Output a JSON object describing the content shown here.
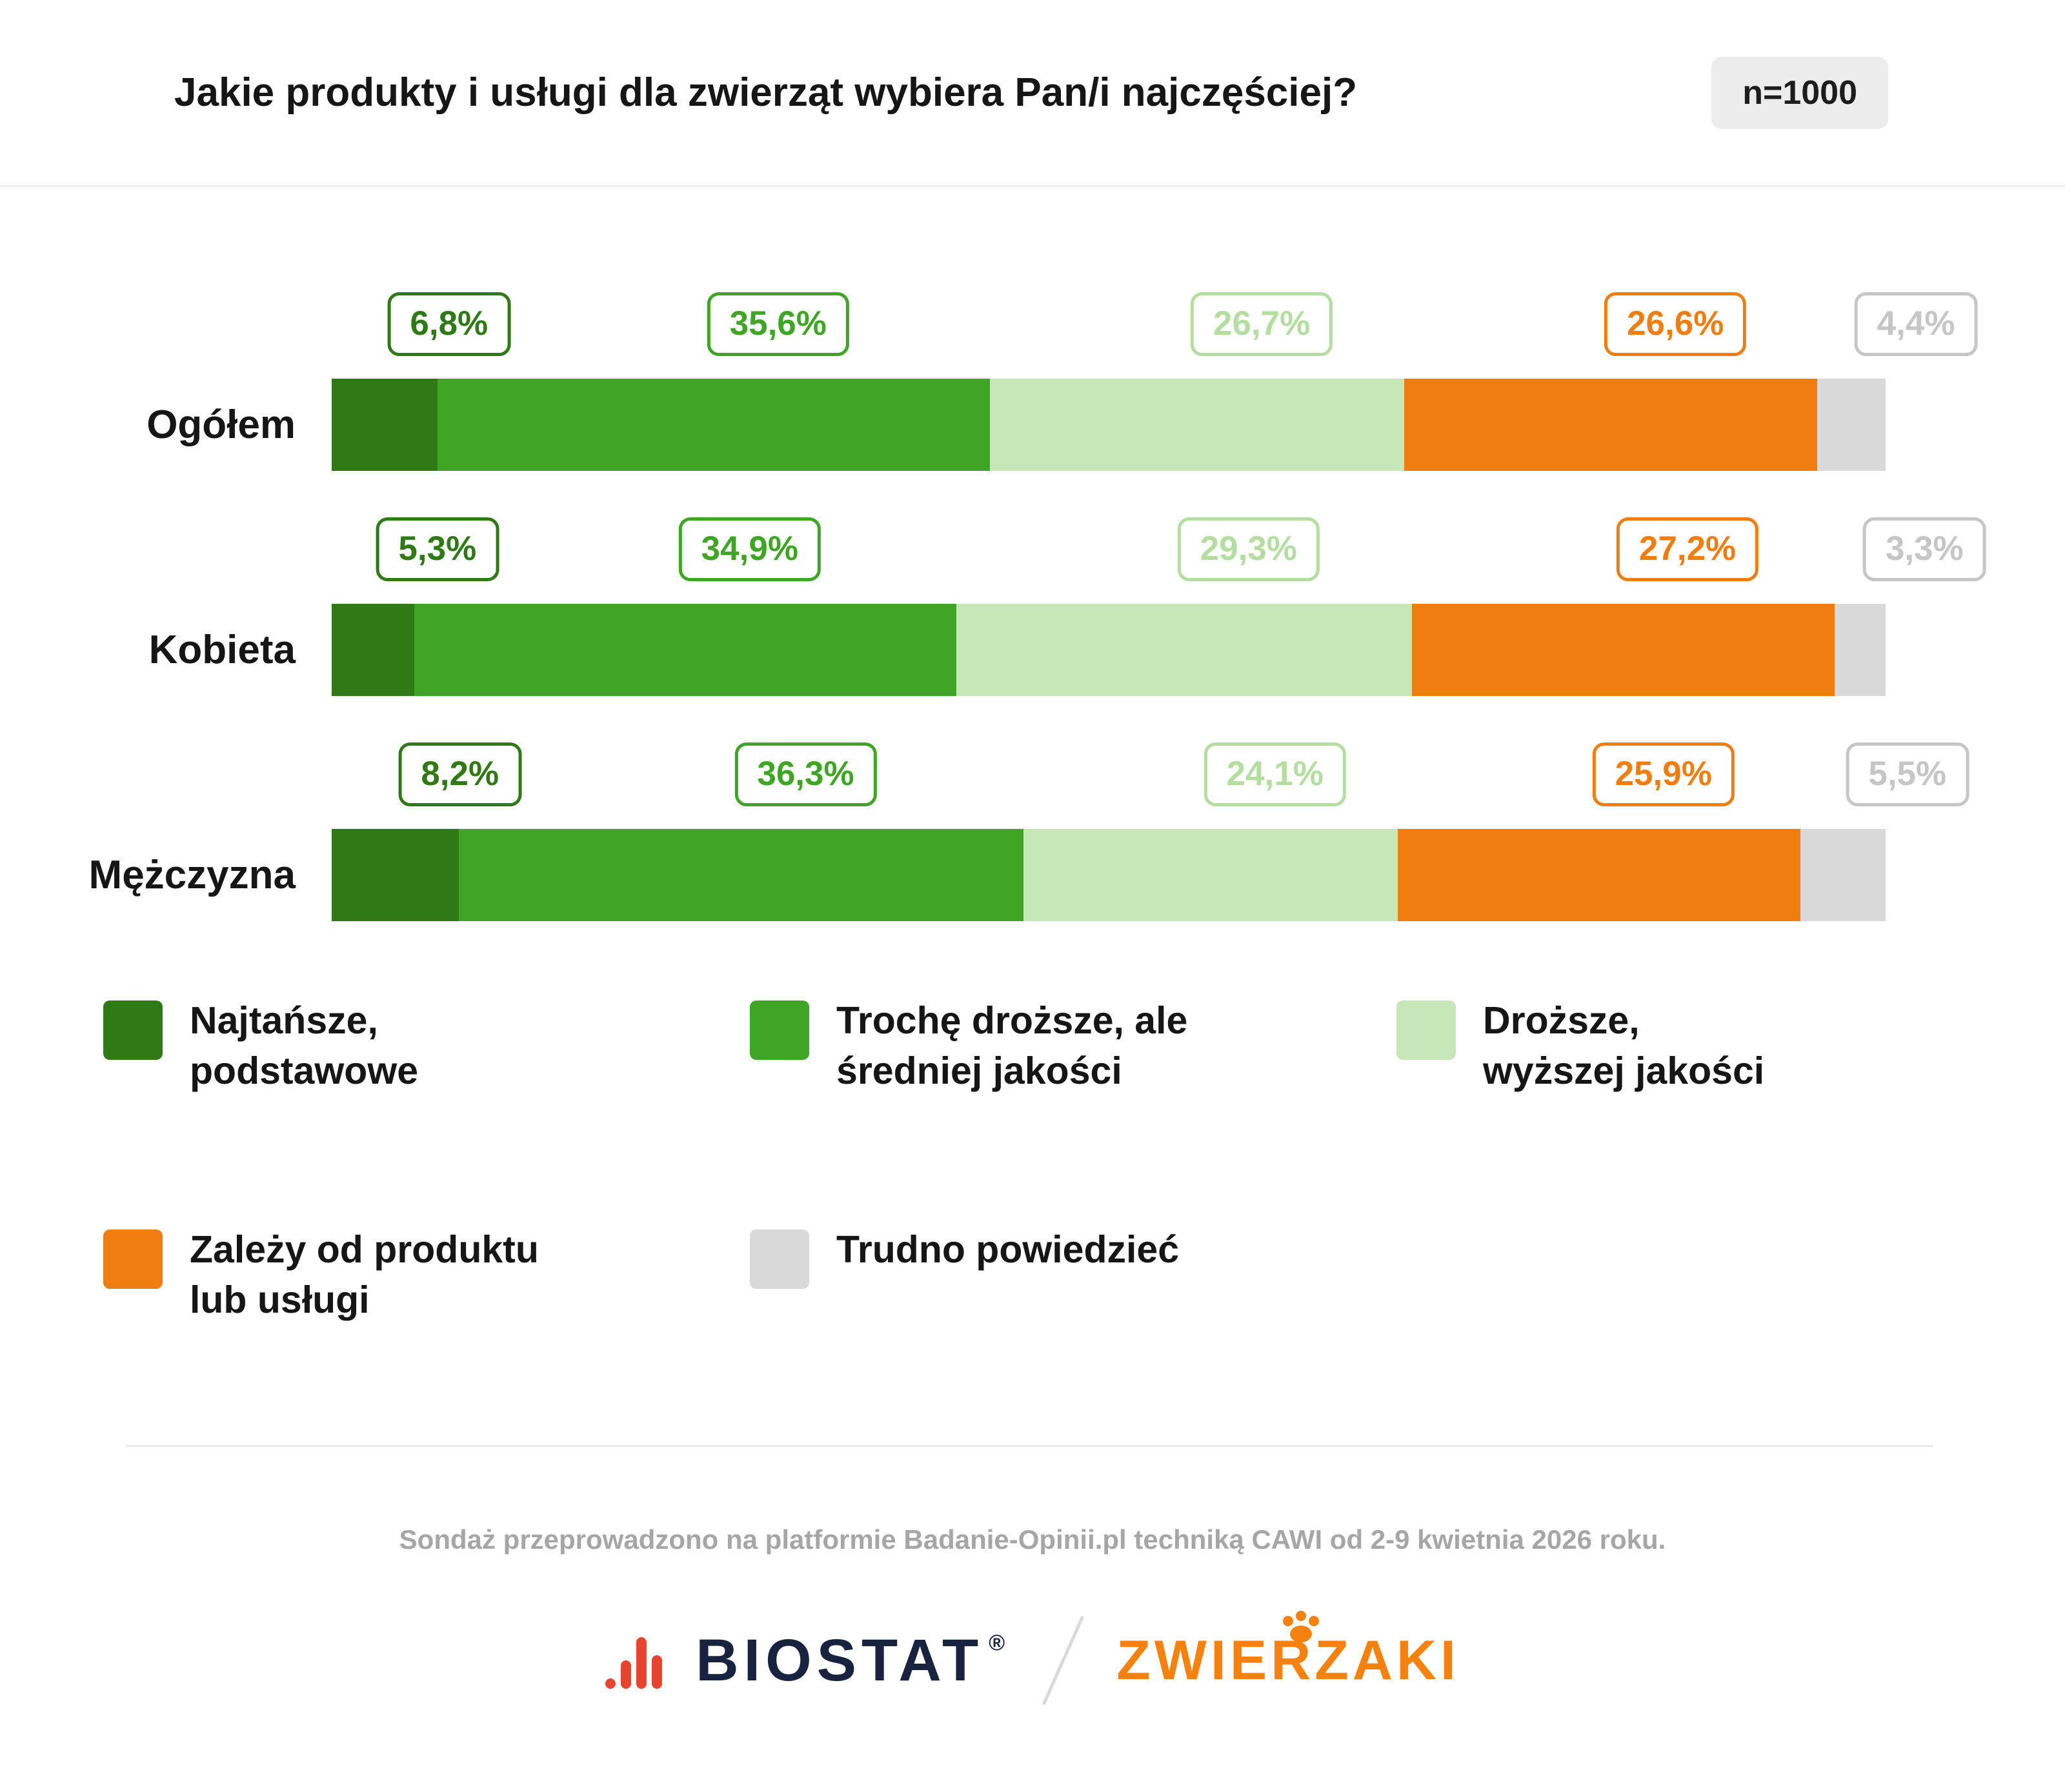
{
  "header": {
    "title": "Jakie produkty i usługi dla zwierząt wybiera Pan/i najczęściej?",
    "sample_size": "n=1000"
  },
  "chart_data": {
    "type": "bar",
    "orientation": "horizontal",
    "stacked": true,
    "unit": "%",
    "xlim": [
      0,
      100
    ],
    "grid": false,
    "legend_position": "bottom",
    "categories": [
      "Ogółem",
      "Kobieta",
      "Mężczyzna"
    ],
    "series": [
      {
        "name": "Najtańsze, podstawowe",
        "color": "#2f7a15",
        "label_color": "#2f7a15",
        "values": [
          6.8,
          5.3,
          8.2
        ]
      },
      {
        "name": "Trochę droższe, ale średniej jakości",
        "color": "#3fa524",
        "label_color": "#3fa524",
        "values": [
          35.6,
          34.9,
          36.3
        ]
      },
      {
        "name": "Droższe, wyższej jakości",
        "color": "#c8e7b8",
        "label_color": "#b4dda0",
        "values": [
          26.7,
          29.3,
          24.1
        ]
      },
      {
        "name": "Zależy od produktu lub usługi",
        "color": "#ef7d10",
        "label_color": "#ef7d10",
        "values": [
          26.6,
          27.2,
          25.9
        ]
      },
      {
        "name": "Trudno powiedzieć",
        "color": "#d9d9d9",
        "label_color": "#c6c6c6",
        "values": [
          4.4,
          3.3,
          5.5
        ]
      }
    ],
    "value_labels": [
      [
        "6,8%",
        "35,6%",
        "26,7%",
        "26,6%",
        "4,4%"
      ],
      [
        "5,3%",
        "34,9%",
        "29,3%",
        "27,2%",
        "3,3%"
      ],
      [
        "8,2%",
        "36,3%",
        "24,1%",
        "25,9%",
        "5,5%"
      ]
    ]
  },
  "legend": {
    "rows": [
      [
        {
          "color": "#2f7a15",
          "lines": [
            "Najtańsze,",
            "podstawowe"
          ]
        },
        {
          "color": "#3fa524",
          "lines": [
            "Trochę droższe, ale",
            "średniej jakości"
          ]
        },
        {
          "color": "#c8e7b8",
          "lines": [
            "Droższe,",
            "wyższej jakości"
          ]
        }
      ],
      [
        {
          "color": "#ef7d10",
          "lines": [
            "Zależy od produktu",
            "lub usługi"
          ]
        },
        {
          "color": "#d9d9d9",
          "lines": [
            "Trudno powiedzieć"
          ]
        }
      ]
    ]
  },
  "footer": {
    "note": "Sondaż przeprowadzono na platformie Badanie-Opinii.pl techniką CAWI od 2-9 kwietnia 2026 roku.",
    "brand_biostat": "BIOSTAT",
    "brand_biostat_reg": "®",
    "brand_zwierzaki": "ZWIERZAKI"
  }
}
